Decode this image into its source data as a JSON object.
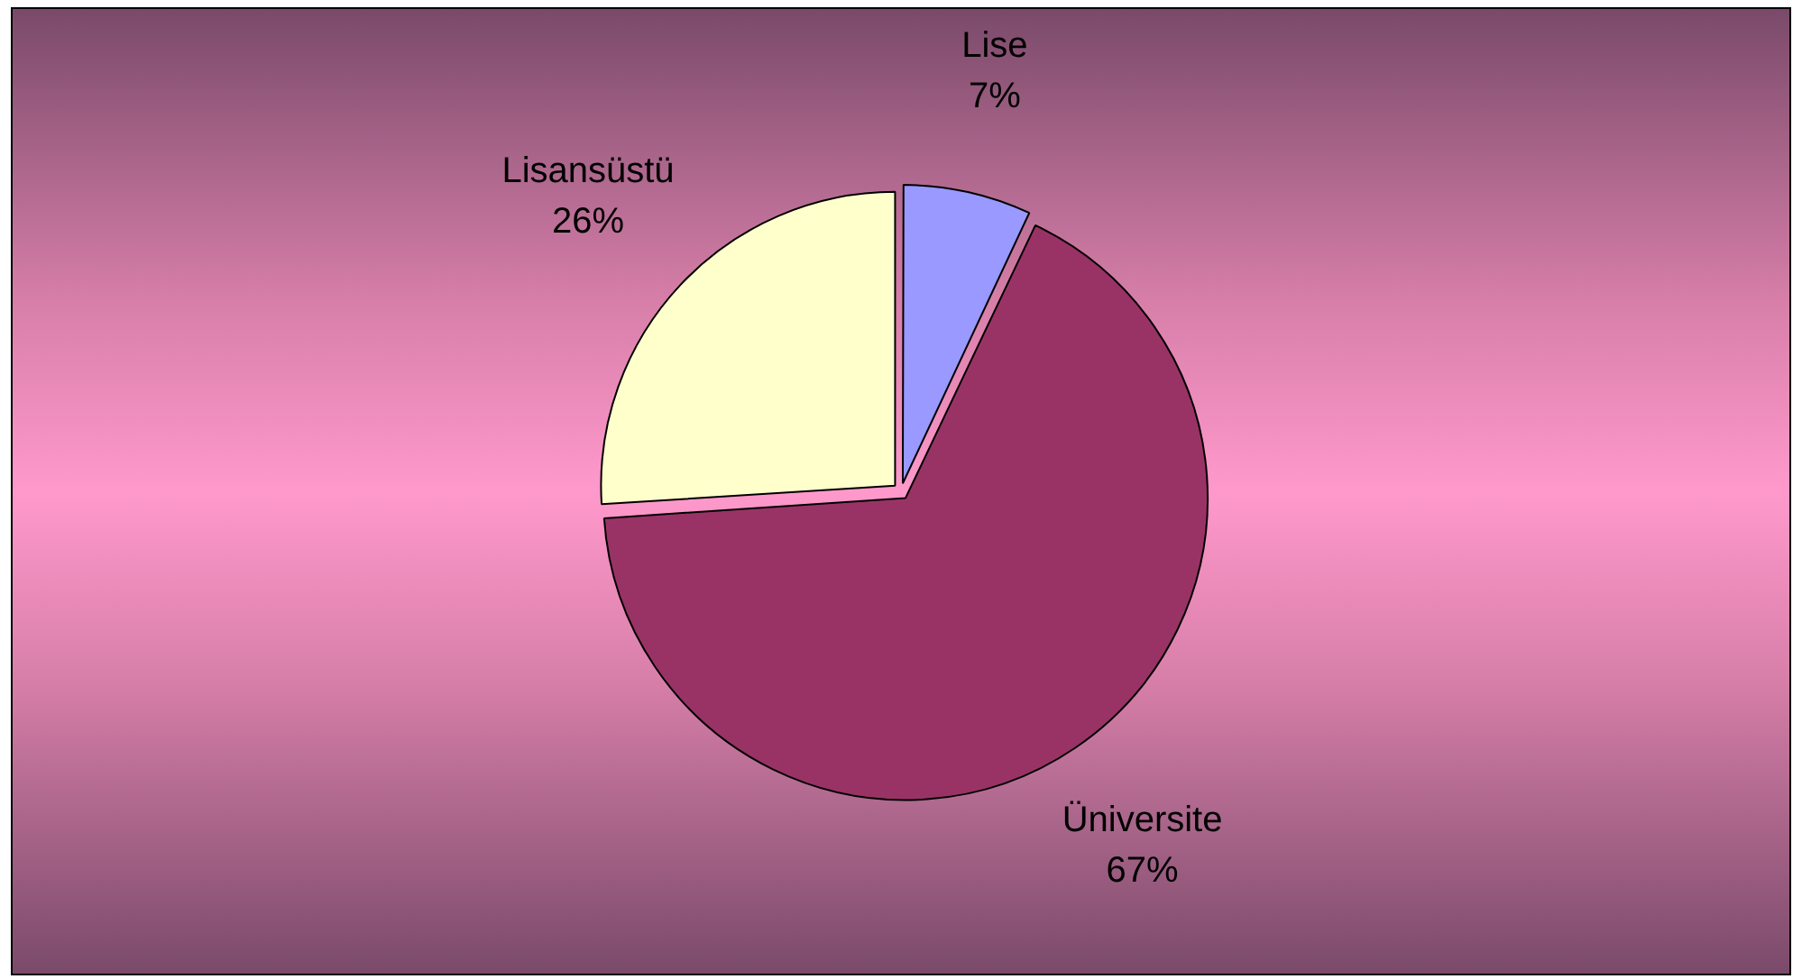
{
  "chart_data": {
    "type": "pie",
    "categories": [
      "Lise",
      "Üniversite",
      "Lisansüstü"
    ],
    "values": [
      7,
      67,
      26
    ],
    "colors": [
      "#9999ff",
      "#993366",
      "#ffffcc"
    ],
    "value_labels": [
      "7%",
      "67%",
      "26%"
    ],
    "legend": false
  }
}
